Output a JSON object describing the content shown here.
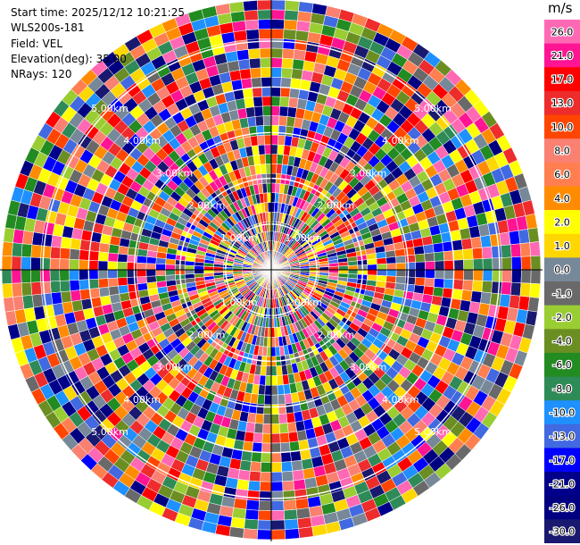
{
  "header": {
    "start_time": "Start time: 2025/12/12 10:21:25",
    "instrument": "WLS200s-181",
    "field": "Field: VEL",
    "elevation": "Elevation(deg): 35.00",
    "nrays": "NRays: 120"
  },
  "chart_data": {
    "type": "heatmap",
    "subtype": "polar-ppi",
    "field": "VEL",
    "nrays": 120,
    "range_rings_km": [
      1.0,
      2.0,
      3.0,
      4.0,
      5.0
    ],
    "ring_label_text": [
      "1.00km",
      "2.00km",
      "3.00km",
      "4.00km",
      "5.00km"
    ],
    "max_range_km": 5.9,
    "grid": true,
    "colorbar": {
      "unit": "m/s",
      "placement": "right",
      "tick_labels": [
        "26.0",
        "21.0",
        "17.0",
        "13.0",
        "10.0",
        "8.0",
        "6.0",
        "4.0",
        "2.0",
        "1.0",
        "0.0",
        "-1.0",
        "-2.0",
        "-4.0",
        "-6.0",
        "-8.0",
        "-10.0",
        "-13.0",
        "-17.0",
        "-21.0",
        "-26.0",
        "-30.0"
      ],
      "bin_colors": [
        "#ff69b4",
        "#ff1493",
        "#ff0000",
        "#ee2c2c",
        "#ff4500",
        "#fa8072",
        "#ff7f50",
        "#ff8c00",
        "#ffff00",
        "#ffd700",
        "#778899",
        "#696969",
        "#9acd32",
        "#6b8e23",
        "#228b22",
        "#2e8b57",
        "#1e90ff",
        "#4169e1",
        "#0000ff",
        "#00008b",
        "#000080",
        "#191970"
      ]
    }
  }
}
